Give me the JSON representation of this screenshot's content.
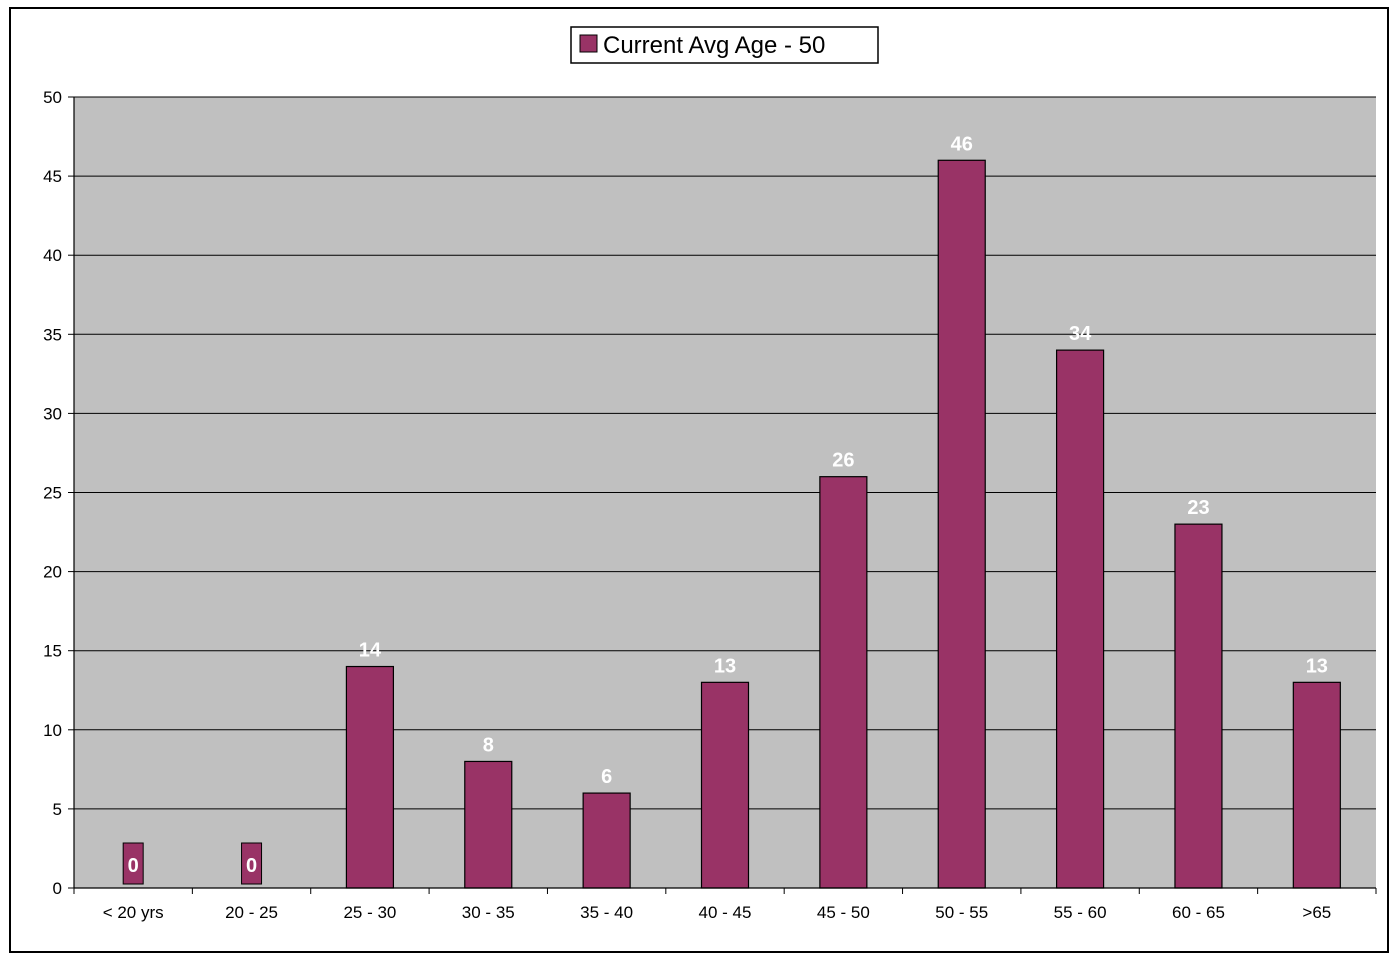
{
  "chart_data": {
    "type": "bar",
    "categories": [
      "< 20 yrs",
      "20 - 25",
      "25 - 30",
      "30 - 35",
      "35 - 40",
      "40 - 45",
      "45 - 50",
      "50 - 55",
      "55 - 60",
      "60 - 65",
      ">65"
    ],
    "series": [
      {
        "name": "Current Avg Age - 50",
        "values": [
          0,
          0,
          14,
          8,
          6,
          13,
          26,
          46,
          34,
          23,
          13
        ]
      }
    ],
    "title": "",
    "xlabel": "",
    "ylabel": "",
    "ylim": [
      0,
      50
    ],
    "yticks": [
      0,
      5,
      10,
      15,
      20,
      25,
      30,
      35,
      40,
      45,
      50
    ],
    "grid": true,
    "legend_position": "top-center",
    "colors": {
      "bar": "#993366",
      "plot_background": "#c0c0c0",
      "gridline": "#000000",
      "data_label": "#ffffff"
    }
  }
}
